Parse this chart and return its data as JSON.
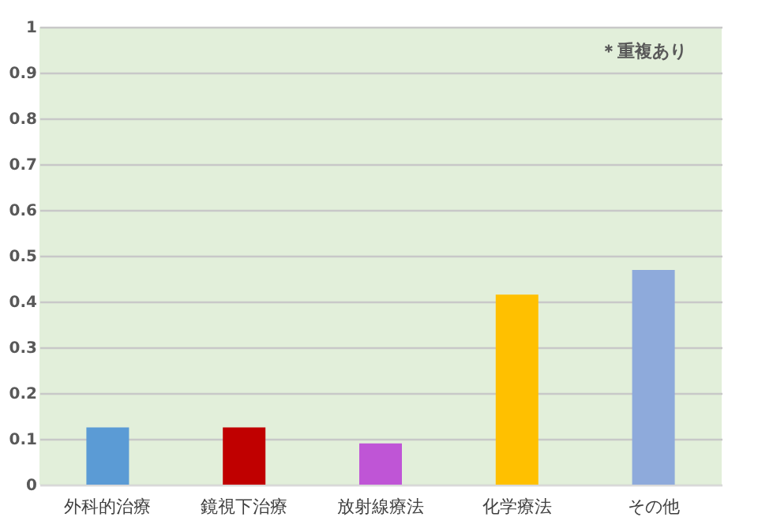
{
  "chart_data": {
    "type": "bar",
    "categories": [
      "外科的治療",
      "鏡視下治療",
      "放射線療法",
      "化学療法",
      "その他"
    ],
    "values": [
      0.125,
      0.125,
      0.09,
      0.415,
      0.469
    ],
    "colors": [
      "#5b9bd5",
      "#c00000",
      "#bf55d6",
      "#ffc000",
      "#8eaadb"
    ],
    "ylim": [
      0,
      1
    ],
    "yticks": [
      0,
      0.1,
      0.2,
      0.3,
      0.4,
      0.5,
      0.6,
      0.7,
      0.8,
      0.9,
      1
    ],
    "grid": "y",
    "annotations": [
      "＊重複あり"
    ]
  }
}
